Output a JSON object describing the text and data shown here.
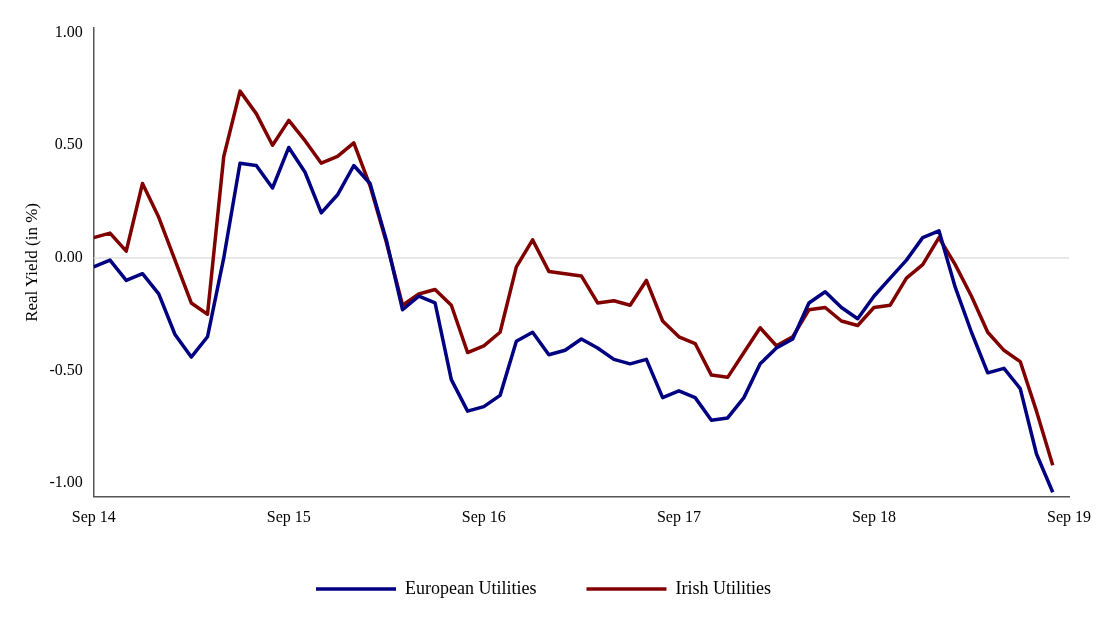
{
  "chart_data": {
    "type": "line",
    "ylabel": "Real Yield (in %)",
    "x": [
      "2014-09",
      "2014-10",
      "2014-11",
      "2014-12",
      "2015-01",
      "2015-02",
      "2015-03",
      "2015-04",
      "2015-05",
      "2015-06",
      "2015-07",
      "2015-08",
      "2015-09",
      "2015-10",
      "2015-11",
      "2015-12",
      "2016-01",
      "2016-02",
      "2016-03",
      "2016-04",
      "2016-05",
      "2016-06",
      "2016-07",
      "2016-08",
      "2016-09",
      "2016-10",
      "2016-11",
      "2016-12",
      "2017-01",
      "2017-02",
      "2017-03",
      "2017-04",
      "2017-05",
      "2017-06",
      "2017-07",
      "2017-08",
      "2017-09",
      "2017-10",
      "2017-11",
      "2017-12",
      "2018-01",
      "2018-02",
      "2018-03",
      "2018-04",
      "2018-05",
      "2018-06",
      "2018-07",
      "2018-08",
      "2018-09",
      "2018-10",
      "2018-11",
      "2018-12",
      "2019-01",
      "2019-02",
      "2019-03",
      "2019-04",
      "2019-05",
      "2019-06",
      "2019-07",
      "2019-08"
    ],
    "series": [
      {
        "name": "European Utilities",
        "color": "#000080",
        "values": [
          -0.04,
          -0.01,
          -0.1,
          -0.07,
          -0.16,
          -0.34,
          -0.44,
          -0.35,
          0.0,
          0.42,
          0.41,
          0.31,
          0.49,
          0.38,
          0.2,
          0.28,
          0.41,
          0.33,
          0.08,
          -0.23,
          -0.17,
          -0.2,
          -0.54,
          -0.68,
          -0.66,
          -0.61,
          -0.37,
          -0.33,
          -0.43,
          -0.41,
          -0.36,
          -0.4,
          -0.45,
          -0.47,
          -0.45,
          -0.62,
          -0.59,
          -0.62,
          -0.72,
          -0.71,
          -0.62,
          -0.47,
          -0.4,
          -0.36,
          -0.2,
          -0.15,
          -0.22,
          -0.27,
          -0.17,
          -0.09,
          -0.01,
          0.09,
          0.12,
          -0.13,
          -0.33,
          -0.51,
          -0.49,
          -0.58,
          -0.87,
          -1.04
        ]
      },
      {
        "name": "Irish Utilities",
        "color": "#800000",
        "values": [
          0.09,
          0.11,
          0.03,
          0.33,
          0.18,
          -0.01,
          -0.2,
          -0.25,
          0.45,
          0.74,
          0.64,
          0.5,
          0.61,
          0.52,
          0.42,
          0.45,
          0.51,
          0.32,
          0.07,
          -0.21,
          -0.16,
          -0.14,
          -0.21,
          -0.42,
          -0.39,
          -0.33,
          -0.04,
          0.08,
          -0.06,
          -0.07,
          -0.08,
          -0.2,
          -0.19,
          -0.21,
          -0.1,
          -0.28,
          -0.35,
          -0.38,
          -0.52,
          -0.53,
          -0.42,
          -0.31,
          -0.39,
          -0.35,
          -0.23,
          -0.22,
          -0.28,
          -0.3,
          -0.22,
          -0.21,
          -0.09,
          -0.03,
          0.09,
          -0.03,
          -0.17,
          -0.33,
          -0.41,
          -0.46,
          -0.68,
          -0.92
        ]
      }
    ],
    "xlim": [
      "2014-09",
      "2019-09"
    ],
    "xticks": [
      {
        "value": "2014-09",
        "label": "Sep 14"
      },
      {
        "value": "2015-09",
        "label": "Sep 15"
      },
      {
        "value": "2016-09",
        "label": "Sep 16"
      },
      {
        "value": "2017-09",
        "label": "Sep 17"
      },
      {
        "value": "2018-09",
        "label": "Sep 18"
      },
      {
        "value": "2019-09",
        "label": "Sep 19"
      }
    ],
    "ylim": [
      -1.06,
      1.02
    ],
    "yticks": [
      {
        "value": -1,
        "label": "-1.00"
      },
      {
        "value": -0.5,
        "label": "-0.50"
      },
      {
        "value": 0,
        "label": "0.00"
      },
      {
        "value": 0.5,
        "label": "0.50"
      },
      {
        "value": 1,
        "label": "1.00"
      }
    ],
    "ref_lines": [
      {
        "axis": "y",
        "value": 0,
        "color": "#e0e0e0"
      }
    ],
    "legend": "bottom",
    "marker": "none",
    "line_style": "solid"
  }
}
